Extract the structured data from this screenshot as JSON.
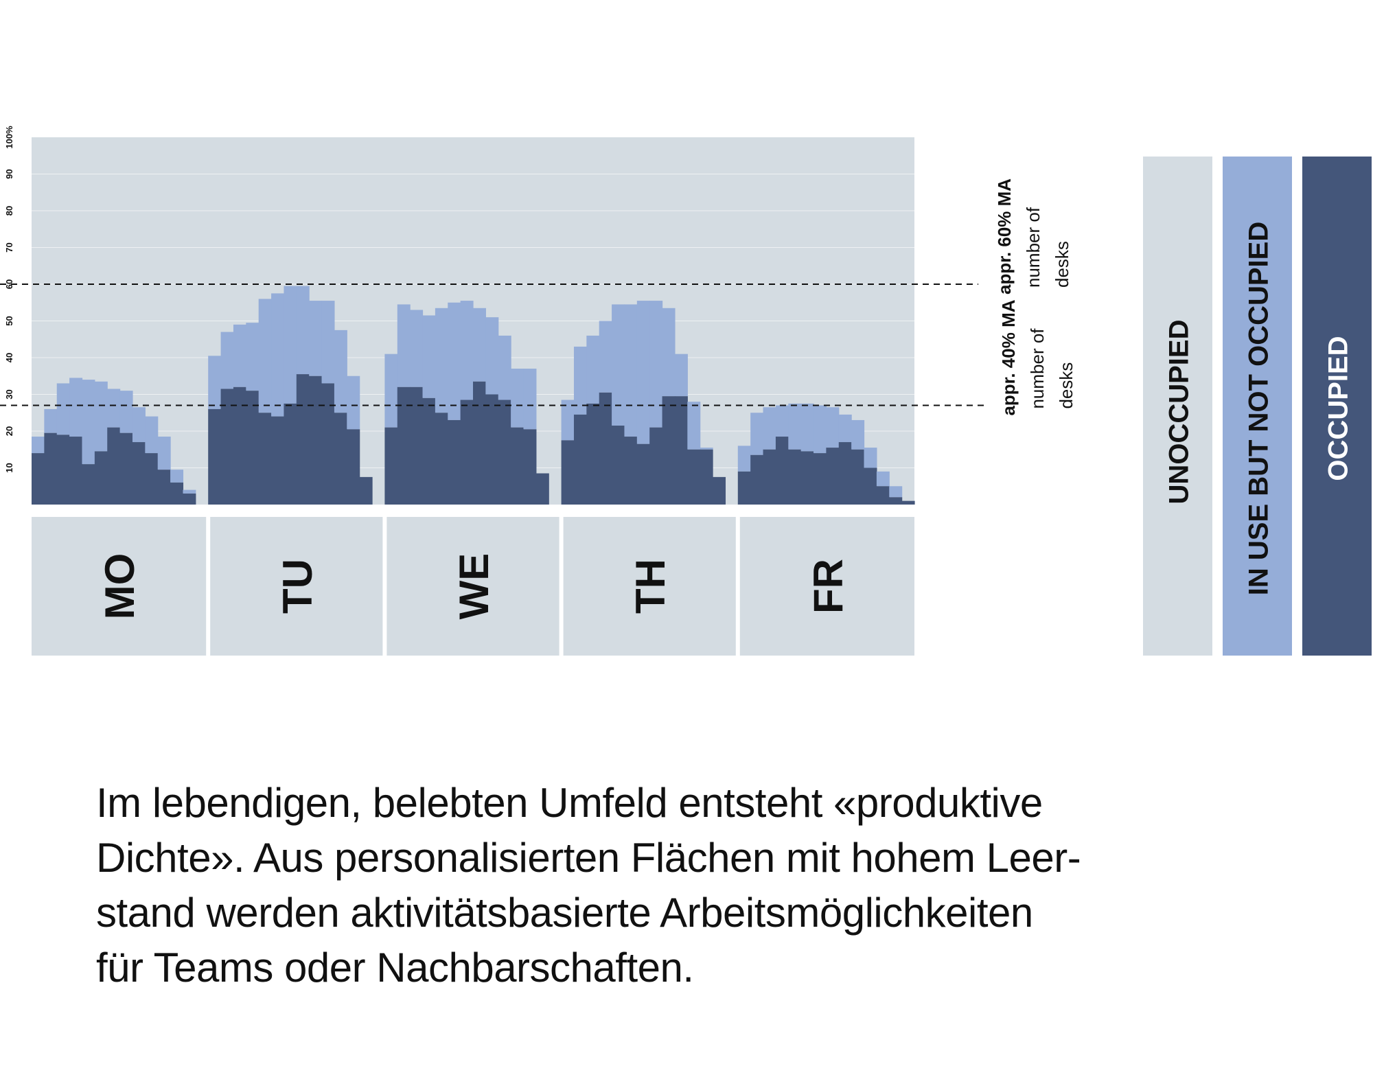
{
  "chart_data": {
    "type": "area",
    "subtype": "stacked-step",
    "y_unit": "%",
    "ylim": [
      0,
      100
    ],
    "y_ticks": [
      "10",
      "20",
      "30",
      "40",
      "50",
      "60",
      "70",
      "80",
      "90",
      "100%"
    ],
    "categories": [
      "MO",
      "TU",
      "WE",
      "TH",
      "FR"
    ],
    "slots_per_day": 14,
    "series": [
      {
        "name": "OCCUPIED",
        "color": "#44567a",
        "values": [
          [
            14,
            19.5,
            19,
            18.5,
            11,
            14.5,
            21,
            19.5,
            17,
            14,
            9.5,
            6,
            3,
            0
          ],
          [
            26,
            31.5,
            32,
            31,
            25,
            24,
            27.5,
            35.5,
            35,
            33,
            25,
            20.5,
            7.5,
            0
          ],
          [
            21,
            32,
            32,
            29,
            25,
            23,
            28.5,
            33.5,
            30,
            28.5,
            21,
            20.5,
            8.5,
            0
          ],
          [
            17.5,
            24.5,
            27.5,
            30.5,
            21.5,
            18.5,
            16.5,
            21,
            29.5,
            29.5,
            15,
            15,
            7.5,
            0
          ],
          [
            9,
            13.5,
            15,
            18.5,
            15,
            14.5,
            14,
            15.5,
            17,
            15,
            10,
            5,
            2,
            1
          ]
        ]
      },
      {
        "name": "IN USE BUT NOT OCCUPIED",
        "color": "#95add8",
        "values": [
          [
            4.5,
            6.5,
            14,
            16,
            23,
            19,
            10.5,
            11.5,
            9.5,
            10,
            9,
            3.5,
            1,
            0
          ],
          [
            14.5,
            15.5,
            17,
            18.5,
            31,
            33.5,
            32,
            24,
            20.5,
            22.5,
            22.5,
            14.5,
            0,
            0
          ],
          [
            20,
            22.5,
            21,
            22.5,
            28.5,
            32,
            27,
            20,
            21,
            17.5,
            16,
            16.5,
            0,
            0
          ],
          [
            11,
            18.5,
            18.5,
            19.5,
            33,
            36,
            39,
            34.5,
            24,
            11.5,
            13,
            0.5,
            0,
            0
          ],
          [
            7,
            11.5,
            11.5,
            8.5,
            12.5,
            13,
            13,
            11,
            7.5,
            8,
            5.5,
            4,
            3,
            0
          ]
        ]
      },
      {
        "name": "UNOCCUPIED",
        "color": "#d4dce2",
        "values": "remainder to 100%"
      }
    ],
    "reference_lines": [
      {
        "value": 60,
        "label_bold": "appr. 60% MA",
        "label_lines": [
          "number of",
          "desks"
        ]
      },
      {
        "value": 27,
        "label_bold": "appr. 40% MA",
        "label_lines": [
          "number of",
          "desks"
        ]
      }
    ],
    "legend": [
      "UNOCCUPIED",
      "IN USE BUT NOT OCCUPIED",
      "OCCUPIED"
    ],
    "legend_placement": "right"
  },
  "caption": {
    "lines": [
      "Im lebendigen, belebten Umfeld entsteht «produktive",
      "Dichte». Aus personalisierten Flächen mit hohem Leer-",
      "stand werden aktivitätsbasierte Arbeitsmöglichkeiten",
      "für Teams oder Nachbarschaften."
    ]
  }
}
